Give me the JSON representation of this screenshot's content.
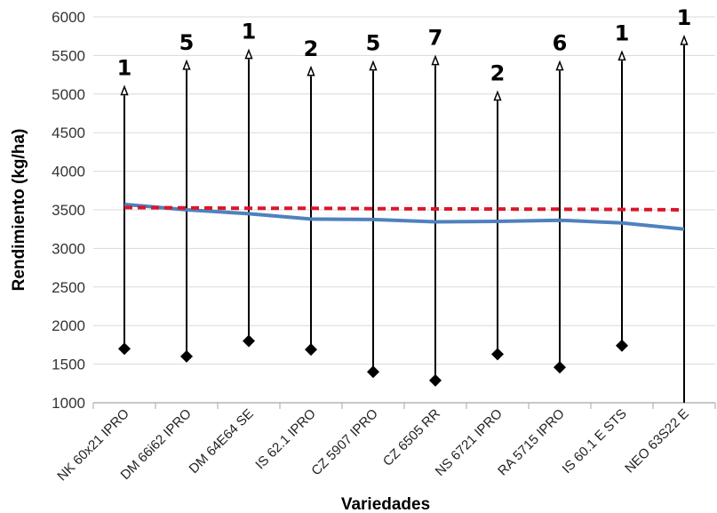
{
  "chart_data": {
    "type": "line",
    "xlabel": "Variedades",
    "ylabel": "Rendimiento (kg/ha)",
    "ylim": [
      1000,
      6000
    ],
    "ytick_step": 500,
    "grid": true,
    "categories": [
      "NK 60x21 IPRO",
      "DM 66i62 IPRO",
      "DM 64E64 SE",
      "IS 62.1 IPRO",
      "CZ 5907 IPRO",
      "CZ 6505 RR",
      "NS 6721 IPRO",
      "RA 5715 IPRO",
      "IS 60.1 E STS",
      "NEO 63S22 E"
    ],
    "series": [
      {
        "kind": "solid-line",
        "color": "#4f81bd",
        "values": [
          3570,
          3500,
          3450,
          3380,
          3375,
          3345,
          3350,
          3365,
          3330,
          3250
        ]
      },
      {
        "kind": "dashed-line",
        "color": "#d9172a",
        "values": [
          3530,
          3525,
          3520,
          3520,
          3515,
          3512,
          3510,
          3508,
          3505,
          3500
        ]
      }
    ],
    "ranges": [
      {
        "category": "NK 60x21 IPRO",
        "min": 1700,
        "max": 5050,
        "label": "1"
      },
      {
        "category": "DM 66i62 IPRO",
        "min": 1600,
        "max": 5380,
        "label": "5"
      },
      {
        "category": "DM 64E64 SE",
        "min": 1800,
        "max": 5520,
        "label": "1"
      },
      {
        "category": "IS 62.1 IPRO",
        "min": 1690,
        "max": 5300,
        "label": "2"
      },
      {
        "category": "CZ 5907 IPRO",
        "min": 1400,
        "max": 5370,
        "label": "5"
      },
      {
        "category": "CZ 6505 RR",
        "min": 1290,
        "max": 5440,
        "label": "7"
      },
      {
        "category": "NS 6721 IPRO",
        "min": 1630,
        "max": 4980,
        "label": "2"
      },
      {
        "category": "RA 5715 IPRO",
        "min": 1460,
        "max": 5370,
        "label": "6"
      },
      {
        "category": "IS 60.1 E STS",
        "min": 1740,
        "max": 5500,
        "label": "1"
      },
      {
        "category": "NEO 63S22 E",
        "min": 1000,
        "max": 5700,
        "label": "1"
      }
    ],
    "colors": {
      "range": "#000000",
      "gridline": "#d9d9d9",
      "axis": "#a6a6a6"
    }
  }
}
